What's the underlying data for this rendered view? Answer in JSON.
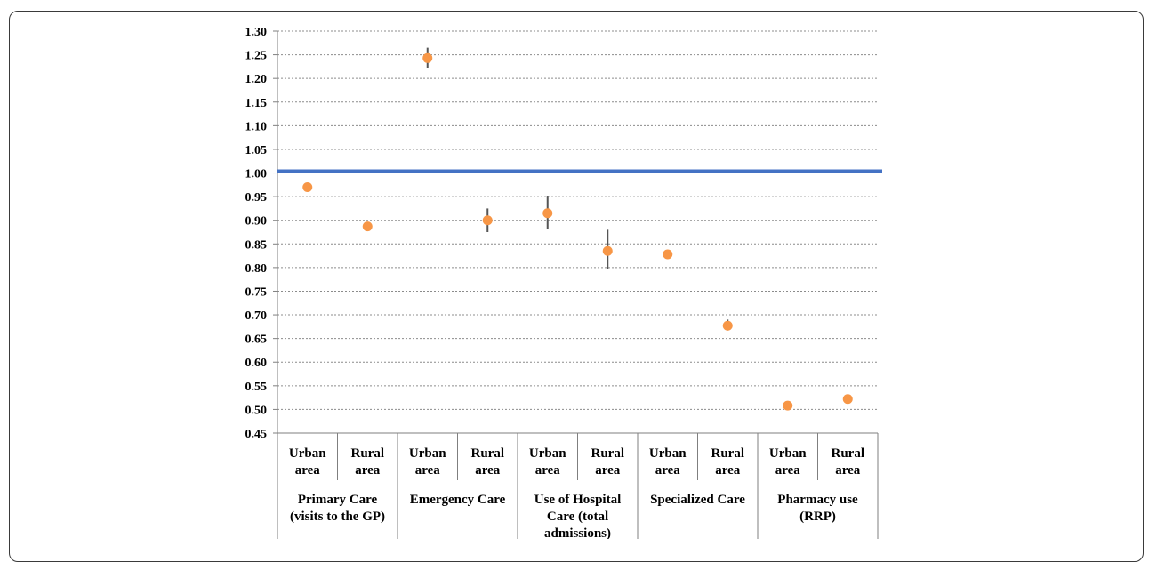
{
  "chart_data": {
    "type": "scatter",
    "title": "",
    "xlabel": "",
    "ylabel": "",
    "ylim": [
      0.45,
      1.3
    ],
    "yticks": [
      "1.30",
      "1.25",
      "1.20",
      "1.15",
      "1.10",
      "1.05",
      "1.00",
      "0.95",
      "0.90",
      "0.85",
      "0.80",
      "0.75",
      "0.70",
      "0.65",
      "0.60",
      "0.55",
      "0.50",
      "0.45"
    ],
    "grid": true,
    "legend": "none",
    "reference_line": {
      "value": 1.0,
      "color": "#4472C4"
    },
    "marker_color": "#F79646",
    "groups": [
      {
        "lines": [
          "Primary Care",
          "(visits to the GP)"
        ]
      },
      {
        "lines": [
          "Emergency Care"
        ]
      },
      {
        "lines": [
          "Use of Hospital",
          "Care (total",
          "admissions)"
        ]
      },
      {
        "lines": [
          "Specialized Care"
        ]
      },
      {
        "lines": [
          "Pharmacy use",
          "(RRP)"
        ]
      }
    ],
    "categories": [
      {
        "lines": [
          "Urban",
          "area"
        ]
      },
      {
        "lines": [
          "Rural",
          "area"
        ]
      },
      {
        "lines": [
          "Urban",
          "area"
        ]
      },
      {
        "lines": [
          "Rural",
          "area"
        ]
      },
      {
        "lines": [
          "Urban",
          "area"
        ]
      },
      {
        "lines": [
          "Rural",
          "area"
        ]
      },
      {
        "lines": [
          "Urban",
          "area"
        ]
      },
      {
        "lines": [
          "Rural",
          "area"
        ]
      },
      {
        "lines": [
          "Urban",
          "area"
        ]
      },
      {
        "lines": [
          "Rural",
          "area"
        ]
      }
    ],
    "points": [
      {
        "value": 0.97,
        "low": 0.97,
        "high": 0.97
      },
      {
        "value": 0.887,
        "low": 0.887,
        "high": 0.887
      },
      {
        "value": 1.243,
        "low": 1.222,
        "high": 1.265
      },
      {
        "value": 0.9,
        "low": 0.875,
        "high": 0.925
      },
      {
        "value": 0.915,
        "low": 0.882,
        "high": 0.952
      },
      {
        "value": 0.835,
        "low": 0.797,
        "high": 0.88
      },
      {
        "value": 0.828,
        "low": 0.828,
        "high": 0.828
      },
      {
        "value": 0.677,
        "low": 0.667,
        "high": 0.69
      },
      {
        "value": 0.508,
        "low": 0.508,
        "high": 0.508
      },
      {
        "value": 0.522,
        "low": 0.522,
        "high": 0.522
      }
    ]
  }
}
